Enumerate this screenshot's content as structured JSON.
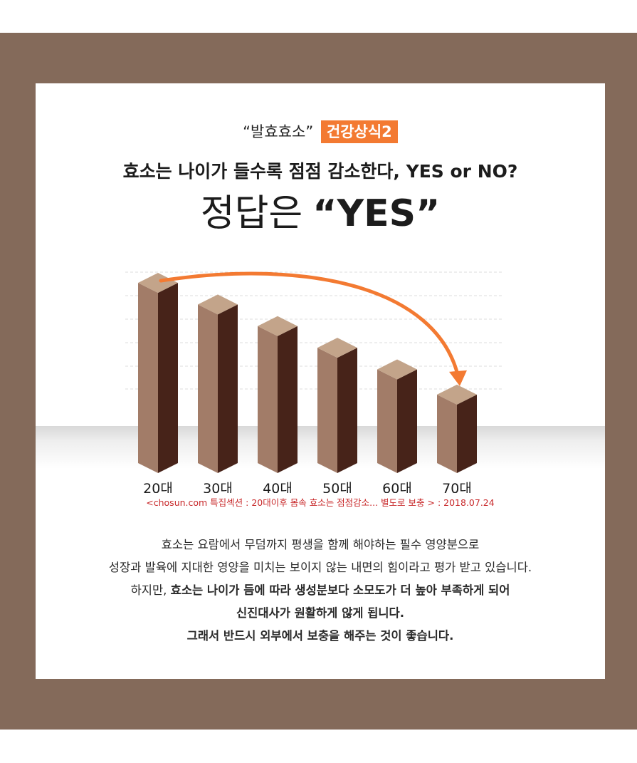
{
  "header": {
    "eyebrow": "“발효효소”",
    "badge": "건강상식2",
    "headline": "효소는 나이가 들수록 점점 감소한다, YES or NO?",
    "answer_prefix": "정답은",
    "answer_value": "“YES”"
  },
  "chart_data": {
    "type": "bar",
    "categories": [
      "20대",
      "30대",
      "40대",
      "50대",
      "60대",
      "70대"
    ],
    "values": [
      100,
      88,
      76,
      64,
      52,
      38
    ],
    "ylim": [
      0,
      100
    ],
    "grid": true,
    "legend": "none",
    "colors": {
      "front": "#a27c68",
      "side": "#472319",
      "top": "#c3a48a",
      "arrow": "#f37a32",
      "grid": "#dcdcdc"
    }
  },
  "source": "<chosun.com 특집섹션 : 20대이후 몸속 효소는 점점감소... 별도로 보충 > : 2018.07.24",
  "body": {
    "line1": "효소는 요람에서 무덤까지 평생을 함께 해야하는 필수 영양분으로",
    "line2": "성장과 발육에 지대한 영양을 미치는 보이지 않는 내면의 힘이라고 평가 받고 있습니다.",
    "line3_prefix": "하지만, ",
    "line3_strong": "효소는 나이가 듬에 따라 생성분보다 소모도가 더 높아 부족하게 되어",
    "line4": "신진대사가 원활하게 않게 됩니다.",
    "line5": "그래서 반드시 외부에서 보충을 해주는 것이 좋습니다."
  }
}
